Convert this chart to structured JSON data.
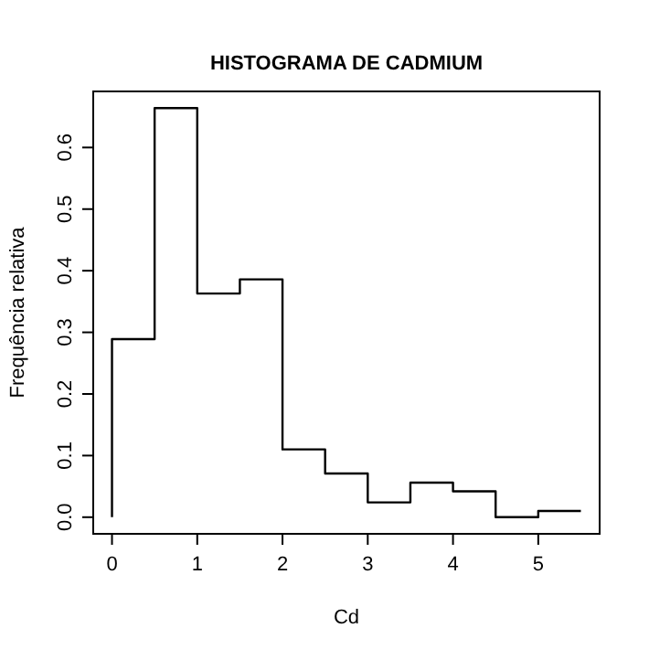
{
  "chart_data": {
    "type": "histogram",
    "title": "HISTOGRAMA DE CADMIUM",
    "xlabel": "Cd",
    "ylabel": "Frequência relativa",
    "bins": [
      0,
      0.5,
      1,
      1.5,
      2,
      2.5,
      3,
      3.5,
      4,
      4.5,
      5,
      5.5
    ],
    "values": [
      0.289,
      0.664,
      0.363,
      0.386,
      0.11,
      0.071,
      0.024,
      0.056,
      0.042,
      0,
      0.01
    ],
    "color": "#000000",
    "xlim": [
      -0.22,
      5.72
    ],
    "ylim": [
      -0.027,
      0.691
    ],
    "xticks": [
      0,
      1,
      2,
      3,
      4,
      5
    ],
    "yticks": [
      {
        "value": 0,
        "label": "0.0"
      },
      0.1,
      0.2,
      0.3,
      0.4,
      0.5,
      0.6
    ],
    "grid": false
  }
}
